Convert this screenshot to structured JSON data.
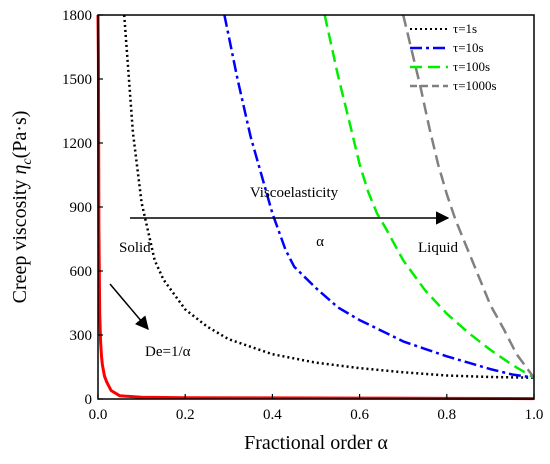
{
  "chart_data": {
    "type": "line",
    "xlabel": "Fractional order α",
    "ylabel_main": "Creep viscosity ",
    "ylabel_sym": "η",
    "ylabel_sub": "c",
    "ylabel_unit": "(Pa·s)",
    "xlim": [
      0,
      1
    ],
    "ylim": [
      0,
      1800
    ],
    "x_ticks": [
      "0.0",
      "0.2",
      "0.4",
      "0.6",
      "0.8",
      "1.0"
    ],
    "y_ticks": [
      "0",
      "300",
      "600",
      "900",
      "1200",
      "1500",
      "1800"
    ],
    "grid": false,
    "legend_position": "top-right",
    "series": [
      {
        "name": "τ=1s",
        "color": "#000000",
        "dash": "dotted",
        "x": [
          0.06,
          0.08,
          0.1,
          0.13,
          0.15,
          0.2,
          0.25,
          0.3,
          0.4,
          0.5,
          0.6,
          0.7,
          0.8,
          0.9,
          1.0
        ],
        "y": [
          1800,
          1250,
          920,
          650,
          560,
          420,
          340,
          280,
          210,
          170,
          145,
          125,
          110,
          103,
          100
        ]
      },
      {
        "name": "τ=10s",
        "color": "#0000ff",
        "dash": "dashdot",
        "x": [
          0.29,
          0.32,
          0.35,
          0.4,
          0.43,
          0.45,
          0.5,
          0.55,
          0.6,
          0.65,
          0.7,
          0.75,
          0.8,
          0.85,
          0.9,
          0.95,
          1.0
        ],
        "y": [
          1800,
          1500,
          1230,
          870,
          700,
          620,
          520,
          430,
          370,
          320,
          270,
          235,
          200,
          170,
          140,
          115,
          100
        ]
      },
      {
        "name": "τ=100s",
        "color": "#00ee00",
        "dash": "dashed",
        "x": [
          0.52,
          0.55,
          0.58,
          0.6,
          0.62,
          0.64,
          0.66,
          0.7,
          0.75,
          0.8,
          0.85,
          0.9,
          0.95,
          1.0
        ],
        "y": [
          1800,
          1520,
          1270,
          1100,
          970,
          870,
          800,
          650,
          510,
          400,
          310,
          230,
          160,
          100
        ]
      },
      {
        "name": "τ=1000s",
        "color": "#808080",
        "dash": "dashed",
        "x": [
          0.7,
          0.72,
          0.74,
          0.76,
          0.78,
          0.8,
          0.82,
          0.84,
          0.86,
          0.88,
          0.9,
          0.93,
          0.96,
          1.0
        ],
        "y": [
          1800,
          1630,
          1460,
          1270,
          1100,
          960,
          840,
          740,
          640,
          540,
          440,
          330,
          210,
          100
        ]
      },
      {
        "name": "",
        "color": "#ff0000",
        "dash": "solid",
        "x": [
          0.0,
          0.001,
          0.002,
          0.004,
          0.006,
          0.008,
          0.01,
          0.015,
          0.02,
          0.03,
          0.05,
          0.1,
          0.2,
          0.4,
          0.6,
          0.8,
          1.0
        ],
        "y": [
          1800,
          1600,
          800,
          400,
          267,
          200,
          160,
          107,
          80,
          40,
          15,
          8,
          6,
          5,
          4,
          3,
          2
        ]
      }
    ],
    "annotations": {
      "viscoelasticity": "Viscoelasticity",
      "alpha": "α",
      "solid": "Solid",
      "liquid": "Liquid",
      "deborah": "De=1/α"
    }
  }
}
